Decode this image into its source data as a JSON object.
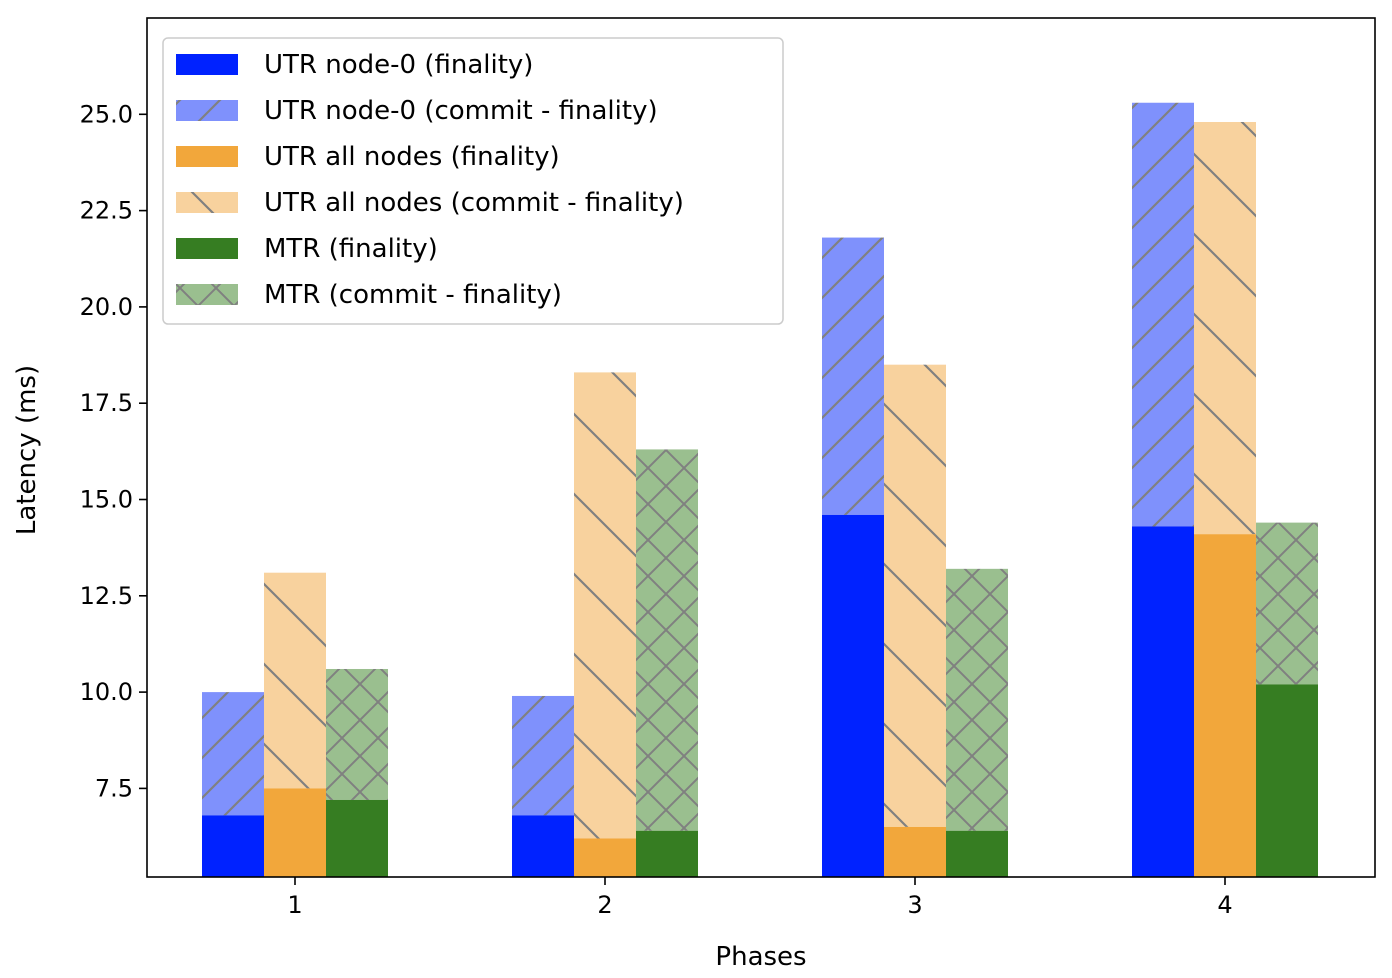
{
  "chart_data": {
    "type": "bar",
    "stacked": true,
    "categories": [
      "1",
      "2",
      "3",
      "4"
    ],
    "xlabel": "Phases",
    "ylabel": "Latency (ms)",
    "ylim": [
      5.2,
      27.5
    ],
    "yticks": [
      "7.5",
      "10.0",
      "12.5",
      "15.0",
      "17.5",
      "20.0",
      "22.5",
      "25.0"
    ],
    "grid": false,
    "legend_position": "top-left",
    "groups": [
      {
        "key": "utr0",
        "finality": {
          "name": "UTR node-0 (finality)",
          "color": "#0022ff",
          "values": [
            6.8,
            6.8,
            14.6,
            14.3
          ]
        },
        "commit": {
          "name": "UTR node-0 (commit - finality)",
          "color": "#7f91fc",
          "hatch": "forward-diagonal",
          "totals": [
            10.0,
            9.9,
            21.8,
            25.3
          ]
        }
      },
      {
        "key": "utrall",
        "finality": {
          "name": "UTR all nodes (finality)",
          "color": "#f2a73b",
          "values": [
            7.5,
            6.2,
            6.5,
            14.1
          ]
        },
        "commit": {
          "name": "UTR all nodes (commit - finality)",
          "color": "#f8d29e",
          "hatch": "back-diagonal",
          "totals": [
            13.1,
            18.3,
            18.5,
            24.8
          ]
        }
      },
      {
        "key": "mtr",
        "finality": {
          "name": "MTR (finality)",
          "color": "#367d22",
          "values": [
            7.2,
            6.4,
            6.4,
            10.2
          ]
        },
        "commit": {
          "name": "MTR (commit - finality)",
          "color": "#9abf8f",
          "hatch": "cross",
          "totals": [
            10.6,
            16.3,
            13.2,
            14.4
          ]
        }
      }
    ],
    "hatch_color": "#808080"
  }
}
